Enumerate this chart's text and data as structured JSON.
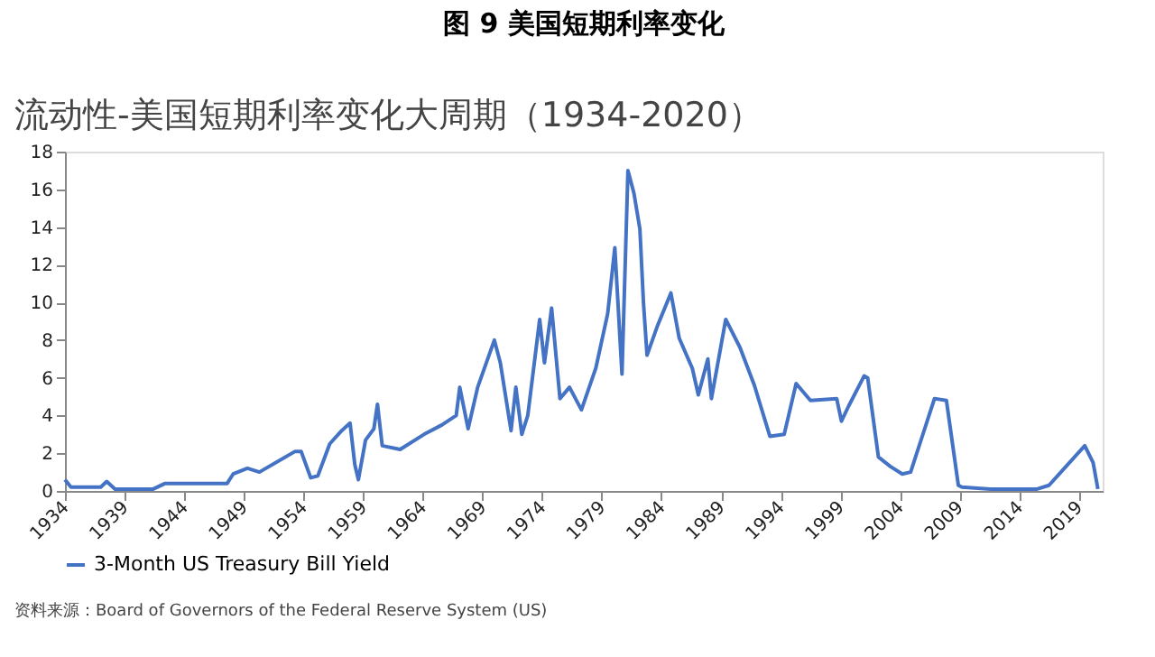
{
  "chart_data": {
    "type": "line",
    "title": "图 9 美国短期利率变化",
    "subtitle": "流动性-美国短期利率变化大周期（1934-2020）",
    "annotations": [
      "资料来源：Board of Governors of the Federal Reserve System (US)"
    ],
    "xlim": [
      1934,
      2021
    ],
    "xticks": [
      1934,
      1939,
      1944,
      1949,
      1954,
      1959,
      1964,
      1969,
      1974,
      1979,
      1984,
      1989,
      1994,
      1999,
      2004,
      2009,
      2014,
      2019
    ],
    "ylim": [
      0,
      18
    ],
    "yticks": [
      0,
      2,
      4,
      6,
      8,
      10,
      12,
      14,
      16,
      18
    ],
    "grid": false,
    "legend": "bottom",
    "marker": "none",
    "line_style": "solid",
    "series": [
      {
        "name": "3-Month US Treasury Bill Yield",
        "color": "#4472c4",
        "x": [
          1934,
          1934.5,
          1937,
          1937.5,
          1938.2,
          1941.4,
          1942.4,
          1947.6,
          1948.1,
          1949.3,
          1950.3,
          1953.3,
          1953.8,
          1954.6,
          1955.2,
          1956.2,
          1957.2,
          1957.9,
          1958.3,
          1958.6,
          1959.2,
          1959.9,
          1960.2,
          1960.6,
          1962.1,
          1964.1,
          1965.6,
          1966.8,
          1967.1,
          1967.8,
          1968.6,
          1970,
          1970.5,
          1971.4,
          1971.8,
          1972.3,
          1972.8,
          1973.8,
          1974.2,
          1974.8,
          1975.5,
          1976.3,
          1977.3,
          1978.5,
          1979.5,
          1980.1,
          1980.7,
          1981.2,
          1981.7,
          1982.2,
          1982.5,
          1982.8,
          1983.7,
          1984.8,
          1985.5,
          1986.6,
          1987.1,
          1987.9,
          1988.2,
          1989.4,
          1990.6,
          1991.8,
          1993.1,
          1994.3,
          1995.3,
          1996.5,
          1998.7,
          1999.1,
          1999.7,
          2001.0,
          2001.3,
          2002.2,
          2003.2,
          2004.2,
          2004.9,
          2006.9,
          2007.9,
          2008.5,
          2008.9,
          2009.2,
          2011.6,
          2015.5,
          2016.5,
          2017.5,
          2019.5,
          2020.2,
          2020.6
        ],
        "values": [
          0.6,
          0.2,
          0.2,
          0.5,
          0.1,
          0.1,
          0.4,
          0.4,
          0.9,
          1.2,
          1.0,
          2.1,
          2.1,
          0.7,
          0.8,
          2.5,
          3.2,
          3.6,
          1.4,
          0.6,
          2.7,
          3.3,
          4.6,
          2.4,
          2.2,
          3.0,
          3.5,
          4.0,
          5.5,
          3.3,
          5.5,
          8.0,
          6.8,
          3.2,
          5.5,
          3.0,
          4.0,
          9.1,
          6.8,
          9.7,
          4.9,
          5.5,
          4.3,
          6.5,
          9.4,
          12.9,
          6.2,
          17.0,
          15.8,
          13.9,
          10.0,
          7.2,
          8.8,
          10.5,
          8.1,
          6.5,
          5.1,
          7.0,
          4.9,
          9.1,
          7.6,
          5.6,
          2.9,
          3.0,
          5.7,
          4.8,
          4.9,
          3.7,
          4.5,
          6.1,
          6.0,
          1.8,
          1.3,
          0.9,
          1.0,
          4.9,
          4.8,
          2.1,
          0.3,
          0.2,
          0.1,
          0.1,
          0.3,
          1.0,
          2.4,
          1.5,
          0.1
        ]
      }
    ]
  }
}
